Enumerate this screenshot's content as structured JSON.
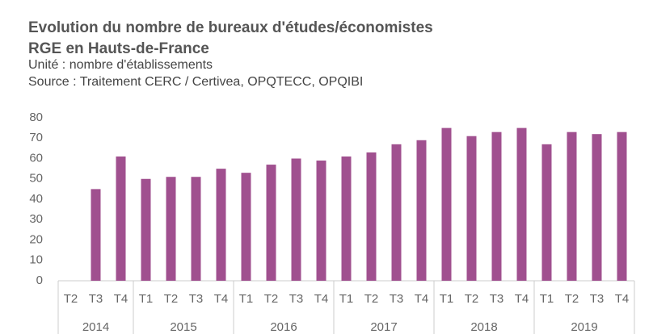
{
  "chart_data": {
    "type": "bar",
    "title": "Evolution du nombre de bureaux d'études/économistes",
    "title_line2": "RGE en Hauts-de-France",
    "subtitle": "Unité : nombre d'établissements",
    "source": "Source : Traitement CERC / Certivea, OPQTECC, OPQIBI",
    "category_groups": [
      {
        "name": "2014",
        "categories": [
          "T2",
          "T3",
          "T4"
        ]
      },
      {
        "name": "2015",
        "categories": [
          "T1",
          "T2",
          "T3",
          "T4"
        ]
      },
      {
        "name": "2016",
        "categories": [
          "T1",
          "T2",
          "T3",
          "T4"
        ]
      },
      {
        "name": "2017",
        "categories": [
          "T1",
          "T2",
          "T3",
          "T4"
        ]
      },
      {
        "name": "2018",
        "categories": [
          "T1",
          "T2",
          "T3",
          "T4"
        ]
      },
      {
        "name": "2019",
        "categories": [
          "T1",
          "T2",
          "T3",
          "T4"
        ]
      }
    ],
    "values": [
      null,
      45,
      61,
      50,
      51,
      51,
      55,
      53,
      57,
      60,
      59,
      61,
      63,
      67,
      69,
      75,
      71,
      73,
      75,
      67,
      73,
      72,
      73
    ],
    "color": "#a0508f",
    "ylim": [
      0,
      80
    ],
    "yticks": [
      0,
      10,
      20,
      30,
      40,
      50,
      60,
      70,
      80
    ],
    "grid": false
  }
}
